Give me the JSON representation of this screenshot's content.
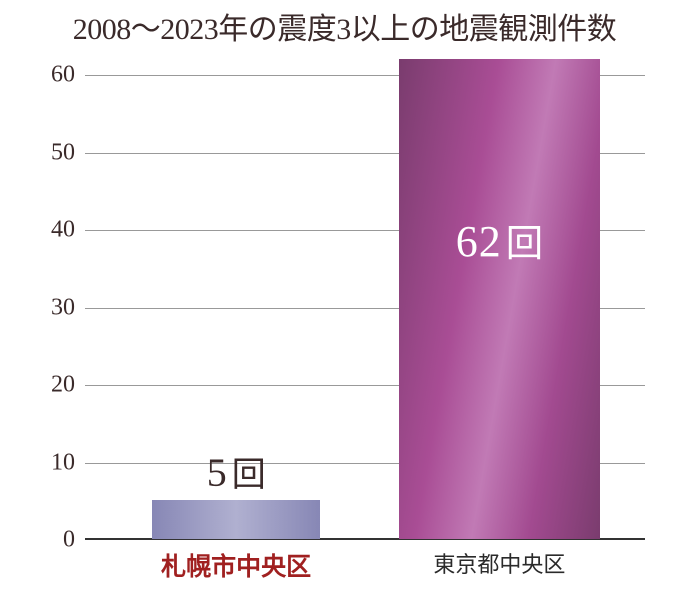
{
  "chart": {
    "type": "bar",
    "title": "2008〜2023年の震度3以上の地震観測件数",
    "title_fontsize": 30,
    "title_color": "#3a2a2a",
    "background_color": "#ffffff",
    "ylim_max": 62,
    "yticks": [
      0,
      10,
      20,
      30,
      40,
      50,
      60
    ],
    "grid_color": "#999999",
    "baseline_color": "#333333",
    "ytick_fontsize": 24,
    "ytick_color": "#3a2a2a",
    "value_unit": "回",
    "bars": [
      {
        "category": "札幌市中央区",
        "value": 5,
        "value_display": "5",
        "bar_gradient_start": "#8787b5",
        "bar_gradient_mid": "#b0b0d0",
        "bar_gradient_end": "#8787b5",
        "value_label_color": "#3a2a2a",
        "value_label_fontsize": 40,
        "value_label_position": "above",
        "category_color": "#a02020",
        "category_fontsize": 25,
        "category_fontweight": "600",
        "bar_left_frac": 0.12,
        "bar_width_frac": 0.3
      },
      {
        "category": "東京都中央区",
        "value": 62,
        "value_display": "62",
        "bar_gradient_start": "#7a3c6e",
        "bar_gradient_mid": "#c17ab5",
        "bar_gradient_end": "#7a3c6e",
        "value_label_color": "#ffffff",
        "value_label_fontsize": 44,
        "value_label_position": "inside",
        "category_color": "#2a2a2a",
        "category_fontsize": 22,
        "category_fontweight": "400",
        "bar_left_frac": 0.56,
        "bar_width_frac": 0.36
      }
    ]
  }
}
